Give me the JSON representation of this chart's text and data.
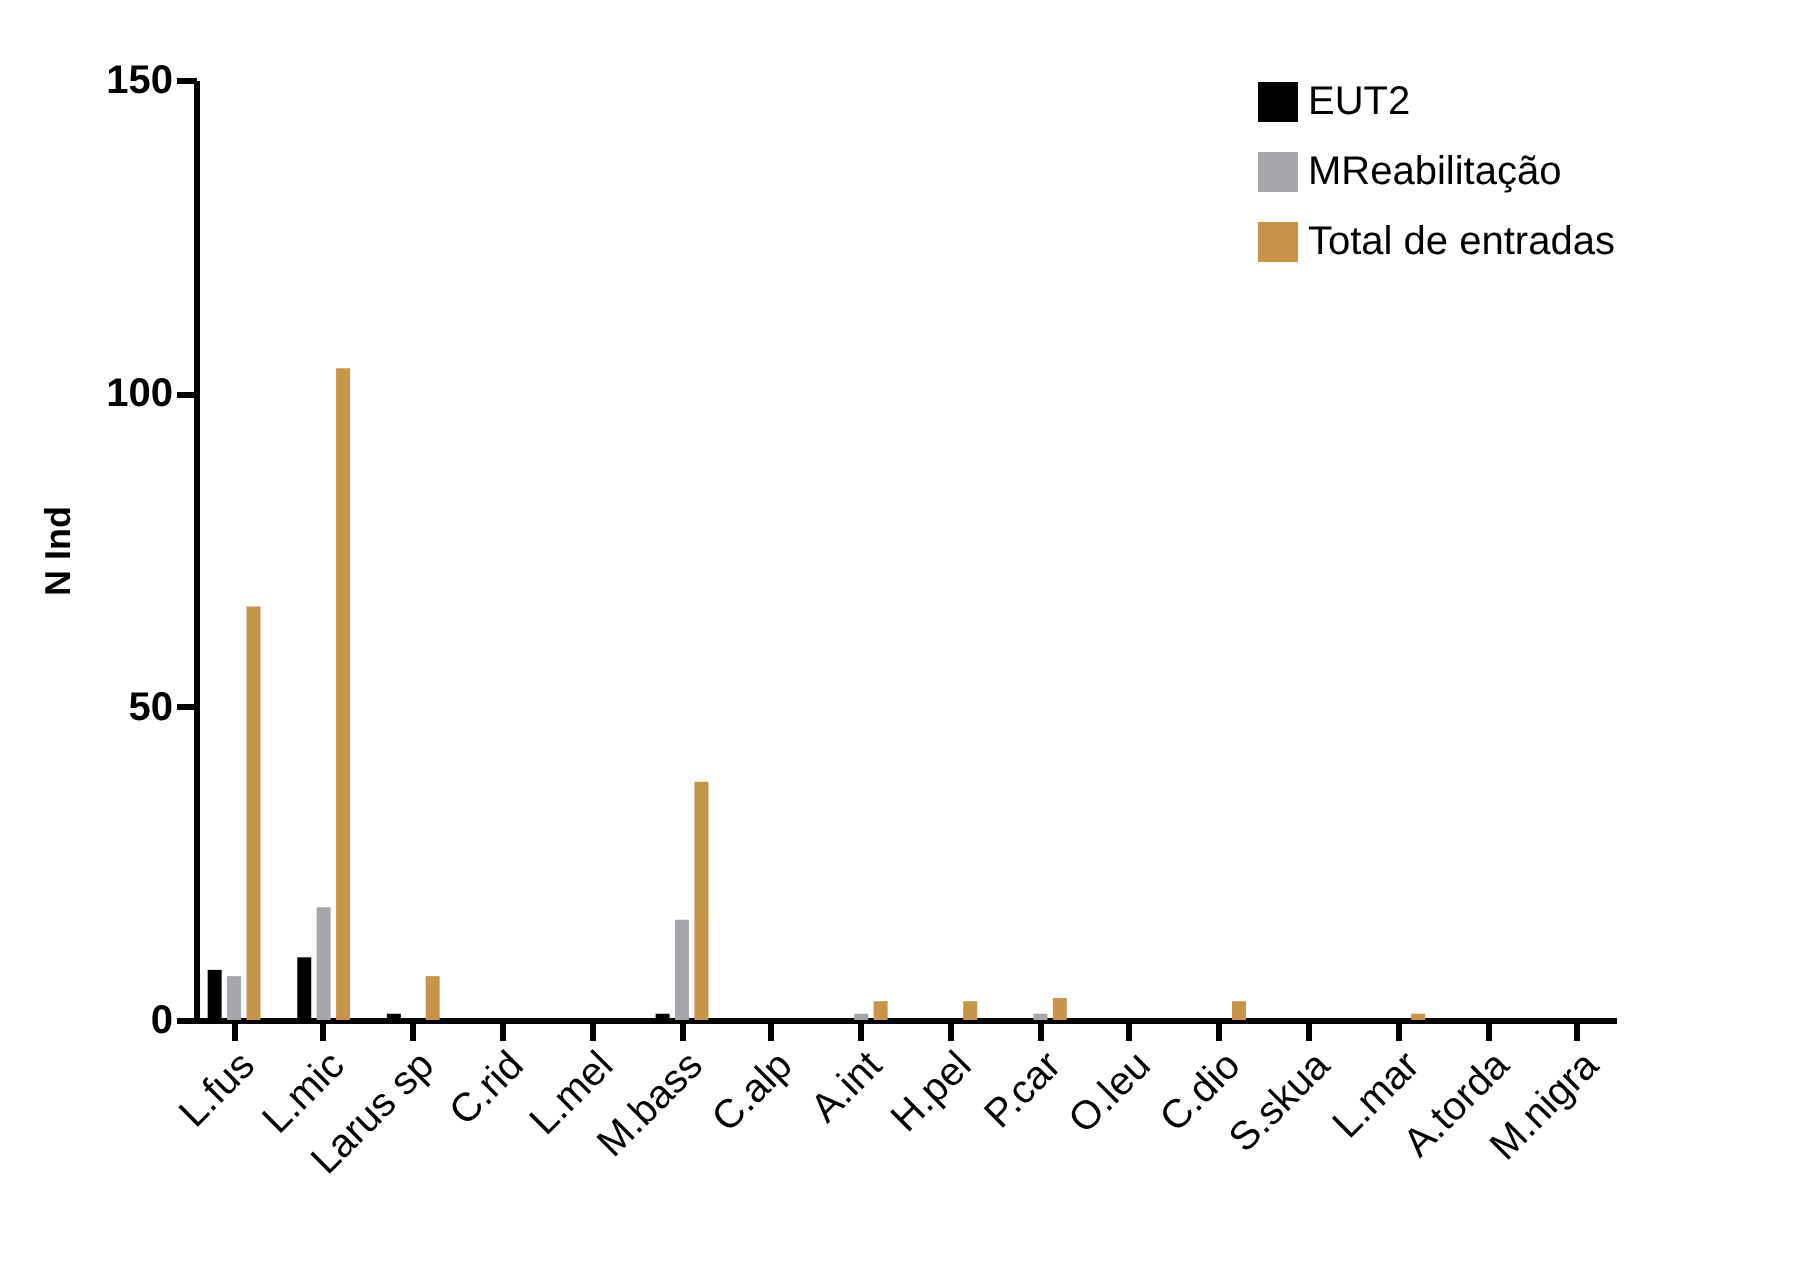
{
  "chart_data": {
    "type": "bar",
    "ylabel": "N Ind",
    "categories": [
      "L.fus",
      "L.mic",
      "Larus sp",
      "C.rid",
      "L.mel",
      "M.bass",
      "C.alp",
      "A.int",
      "H.pel",
      "P.car",
      "O.leu",
      "C.dio",
      "S.skua",
      "L.mar",
      "A.torda",
      "M.nigra"
    ],
    "series": [
      {
        "name": "EUT2",
        "color": "#000000",
        "values": [
          8,
          10,
          1,
          0,
          0,
          1,
          0,
          0,
          0,
          0,
          0,
          0,
          0,
          0,
          0,
          0
        ]
      },
      {
        "name": "MReabilitação",
        "color": "#a6a6ab",
        "values": [
          7,
          18,
          0,
          0,
          0,
          16,
          0,
          1,
          0,
          1,
          0,
          0,
          0,
          0,
          0,
          0
        ]
      },
      {
        "name": "Total de entradas",
        "color": "#c8944a",
        "values": [
          66,
          104,
          7,
          0,
          0,
          38,
          0,
          3,
          3,
          3.5,
          0,
          3,
          0,
          1,
          0,
          0
        ]
      }
    ],
    "ylim": [
      0,
      150
    ],
    "yticks": [
      0,
      50,
      100,
      150
    ],
    "grid": false,
    "legend": "top right"
  }
}
